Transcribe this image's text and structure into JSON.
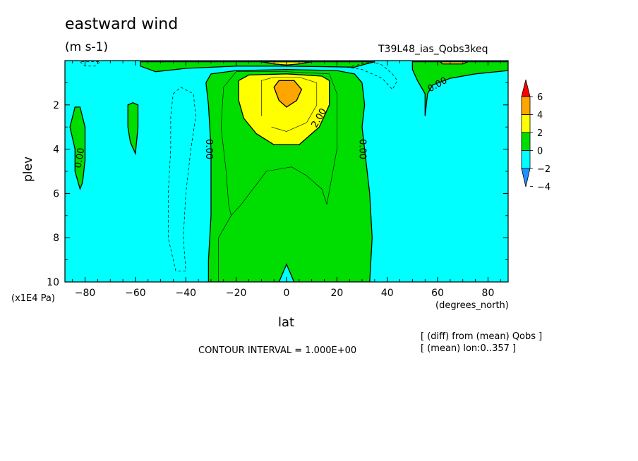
{
  "chart_data": {
    "type": "contour",
    "title": "eastward wind",
    "units": "(m s-1)",
    "run_label": "T39L48_ias_Qobs3keq",
    "xlabel": "lat",
    "xunits": "(degrees_north)",
    "ylabel": "plev",
    "yunits": "(x1E4 Pa)",
    "xlim": [
      -88,
      88
    ],
    "ylim": [
      0,
      10
    ],
    "y_inverted": true,
    "x_ticks": [
      -80,
      -60,
      -40,
      -20,
      0,
      20,
      40,
      60,
      80
    ],
    "x_tick_labels": [
      "-80",
      "-60",
      "-40",
      "-20",
      "0",
      "20",
      "40",
      "60",
      "80"
    ],
    "y_ticks": [
      2,
      4,
      6,
      8,
      10
    ],
    "y_tick_labels": [
      "2",
      "4",
      "6",
      "8",
      "10"
    ],
    "contour_interval_text": "CONTOUR INTERVAL = 1.000E+00",
    "notes": [
      "[ (diff) from (mean) Qobs ]",
      "[ (mean) lon:0..357 ]"
    ],
    "contour_labels": [
      "0.00",
      "0.00",
      "0.00",
      "0.00",
      "2.00",
      "0.00"
    ],
    "colorbar": {
      "levels": [
        -4,
        -2,
        0,
        2,
        4,
        6
      ],
      "tick_labels": [
        "6",
        "4",
        "2",
        "0",
        "-2",
        "-4"
      ],
      "colors": [
        "#1e90ff",
        "#00ffff",
        "#00dd00",
        "#ffff00",
        "#ffa500",
        "#ff0000"
      ]
    },
    "fill_colors": {
      "below_minus2": "#1e90ff",
      "minus2_to_0": "#00ffff",
      "0_to_2": "#00dd00",
      "2_to_4": "#ffff00",
      "4_to_6": "#ffa500"
    },
    "regions": {
      "green_0_to_2": [
        {
          "name": "equatorial-tongue",
          "outline": [
            [
              -31,
              10
            ],
            [
              -31,
              9
            ],
            [
              -30,
              7
            ],
            [
              -30,
              4
            ],
            [
              -31,
              2
            ],
            [
              -32,
              1
            ],
            [
              -30,
              0.6
            ],
            [
              -20,
              0.45
            ],
            [
              0,
              0.4
            ],
            [
              20,
              0.45
            ],
            [
              27,
              0.6
            ],
            [
              30,
              1
            ],
            [
              31,
              2
            ],
            [
              30,
              3
            ],
            [
              31,
              4
            ],
            [
              33,
              6
            ],
            [
              34,
              8
            ],
            [
              33,
              10
            ]
          ]
        },
        {
          "name": "top-mid-band",
          "outline": [
            [
              -58,
              0.05
            ],
            [
              -58,
              0.25
            ],
            [
              -52,
              0.5
            ],
            [
              -40,
              0.35
            ],
            [
              -30,
              0.3
            ],
            [
              -20,
              0.25
            ],
            [
              0,
              0.25
            ],
            [
              20,
              0.28
            ],
            [
              27,
              0.3
            ],
            [
              30,
              0.2
            ],
            [
              35,
              0.05
            ]
          ]
        },
        {
          "name": "top-north-band",
          "outline": [
            [
              50,
              0.05
            ],
            [
              50,
              0.4
            ],
            [
              52,
              0.9
            ],
            [
              55,
              1.5
            ],
            [
              55,
              2.5
            ],
            [
              56,
              1.5
            ],
            [
              58,
              1.1
            ],
            [
              65,
              0.8
            ],
            [
              75,
              0.6
            ],
            [
              88,
              0.45
            ],
            [
              88,
              0.05
            ]
          ]
        },
        {
          "name": "sh-blob-1",
          "outline": [
            [
              -84,
              4
            ],
            [
              -86,
              3
            ],
            [
              -84,
              2.1
            ],
            [
              -82,
              2.1
            ],
            [
              -80,
              3
            ],
            [
              -80,
              4.5
            ],
            [
              -81,
              5.5
            ],
            [
              -82,
              5.8
            ],
            [
              -84,
              5
            ]
          ]
        },
        {
          "name": "sh-blob-2",
          "outline": [
            [
              -63,
              3
            ],
            [
              -63,
              2
            ],
            [
              -61,
              1.9
            ],
            [
              -59,
              2
            ],
            [
              -59,
              3
            ],
            [
              -60,
              4.2
            ],
            [
              -62,
              3.7
            ]
          ]
        }
      ],
      "yellow_2_to_4": [
        {
          "name": "equatorial-core",
          "outline": [
            [
              -19,
              1.8
            ],
            [
              -19,
              0.9
            ],
            [
              -15,
              0.65
            ],
            [
              0,
              0.6
            ],
            [
              14,
              0.7
            ],
            [
              17,
              0.9
            ],
            [
              17,
              2
            ],
            [
              13,
              3
            ],
            [
              5,
              3.8
            ],
            [
              -5,
              3.8
            ],
            [
              -12,
              3.3
            ],
            [
              -17,
              2.6
            ]
          ]
        },
        {
          "name": "top-lens",
          "outline": [
            [
              -10,
              0.05
            ],
            [
              -5,
              0.15
            ],
            [
              0,
              0.2
            ],
            [
              5,
              0.15
            ],
            [
              10,
              0.05
            ]
          ]
        },
        {
          "name": "top-north-patch",
          "outline": [
            [
              61,
              0.05
            ],
            [
              62,
              0.15
            ],
            [
              70,
              0.15
            ],
            [
              72,
              0.05
            ]
          ]
        }
      ],
      "orange_4_to_6": [
        {
          "name": "equatorial-peak",
          "outline": [
            [
              -5,
              1.2
            ],
            [
              -3,
              0.9
            ],
            [
              3,
              0.9
            ],
            [
              6,
              1.3
            ],
            [
              4,
              1.8
            ],
            [
              0,
              2.1
            ],
            [
              -3,
              1.8
            ]
          ]
        }
      ],
      "cyan_notch": [
        {
          "name": "bottom-equator",
          "outline": [
            [
              -3,
              10
            ],
            [
              0,
              9.2
            ],
            [
              3,
              10
            ]
          ]
        }
      ],
      "dashed_contours": [
        {
          "name": "sh-dashed-loop",
          "points": [
            [
              -45,
              1.5
            ],
            [
              -42,
              1.2
            ],
            [
              -37,
              1.5
            ],
            [
              -36,
              2.5
            ],
            [
              -38,
              4
            ],
            [
              -40,
              6
            ],
            [
              -41,
              8
            ],
            [
              -40,
              9.5
            ],
            [
              -44,
              9.5
            ],
            [
              -47,
              8
            ],
            [
              -47,
              6
            ],
            [
              -46,
              4
            ],
            [
              -46,
              2.5
            ]
          ]
        },
        {
          "name": "top-dashed",
          "points": [
            [
              24,
              0.3
            ],
            [
              34,
              0.05
            ],
            [
              38,
              0.2
            ],
            [
              42,
              0.6
            ],
            [
              44,
              0.9
            ],
            [
              42,
              1.3
            ],
            [
              38,
              0.8
            ],
            [
              30,
              0.4
            ]
          ]
        },
        {
          "name": "top-left-dashed",
          "points": [
            [
              -82,
              0.05
            ],
            [
              -80,
              0.25
            ],
            [
              -76,
              0.25
            ],
            [
              -74,
              0.05
            ]
          ]
        }
      ],
      "thin_contours": [
        {
          "name": "c1-ring",
          "points": [
            [
              -27,
              10
            ],
            [
              -27,
              8
            ],
            [
              -22,
              7
            ],
            [
              -18,
              6.5
            ],
            [
              -8,
              5
            ],
            [
              2,
              4.8
            ],
            [
              8,
              5.2
            ],
            [
              14,
              5.8
            ],
            [
              16,
              6.5
            ],
            [
              20,
              4
            ],
            [
              20,
              1.5
            ],
            [
              17,
              0.6
            ],
            [
              0,
              0.5
            ],
            [
              -20,
              0.5
            ],
            [
              -25,
              1.2
            ],
            [
              -26,
              3
            ],
            [
              -24,
              5
            ],
            [
              -23,
              6.5
            ],
            [
              -22,
              7
            ]
          ]
        },
        {
          "name": "c3-ring",
          "points": [
            [
              -10,
              2.5
            ],
            [
              -10,
              0.9
            ],
            [
              -5,
              0.75
            ],
            [
              5,
              0.75
            ],
            [
              12,
              1
            ],
            [
              12,
              2
            ],
            [
              8,
              2.8
            ],
            [
              0,
              3.2
            ],
            [
              -6,
              3
            ]
          ]
        }
      ]
    }
  }
}
